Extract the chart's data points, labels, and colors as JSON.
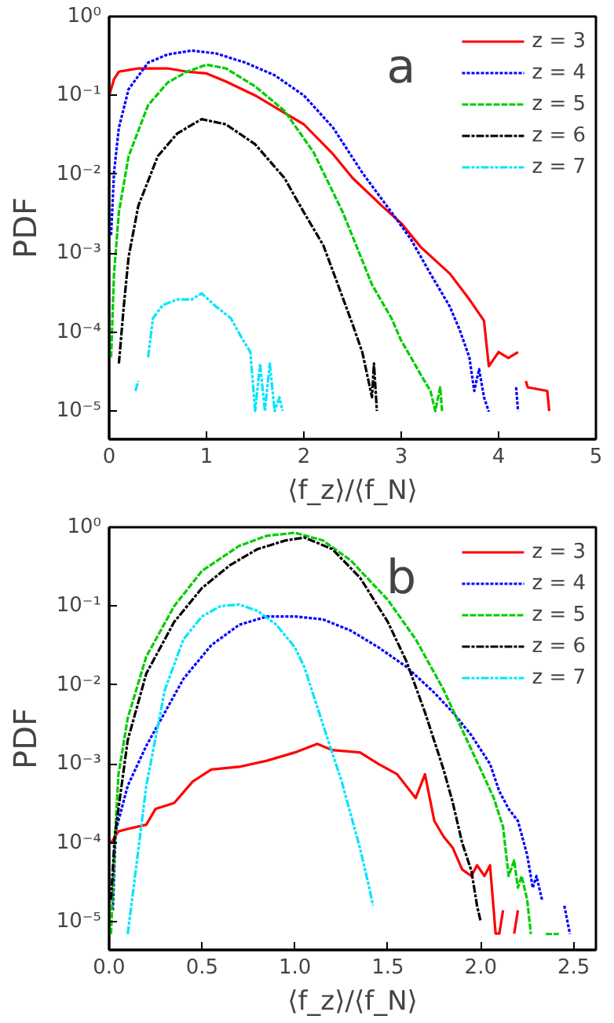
{
  "chart_data": [
    {
      "type": "line",
      "xlabel": "⟨f_z⟩/⟨f_N⟩",
      "ylabel": "PDF",
      "annotations": [
        "a"
      ],
      "log": "y",
      "legend": "top right",
      "grid": false,
      "xlim": [
        0,
        5
      ],
      "xticks": [
        0,
        1,
        2,
        3,
        4,
        5
      ],
      "ylim": [
        4.4e-06,
        1
      ],
      "yticks": [
        {
          "value": 1,
          "label": "10⁰"
        },
        {
          "value": 0.1,
          "label": "10⁻¹"
        },
        {
          "value": 0.01,
          "label": "10⁻²"
        },
        {
          "value": 0.001,
          "label": "10⁻³"
        },
        {
          "value": 0.0001,
          "label": "10⁻⁴"
        },
        {
          "value": 1e-05,
          "label": "10⁻⁵"
        }
      ],
      "series": [
        {
          "name": "z = 3",
          "color": "#ff0000",
          "line_style": "solid",
          "x": [
            0,
            0.05,
            0.1,
            0.2,
            0.3,
            0.6,
            0.8,
            1,
            1.2,
            1.5,
            1.8,
            2,
            2.3,
            2.5,
            2.8,
            3,
            3.2,
            3.5,
            3.7,
            3.85,
            3.9,
            4.0,
            4.1,
            4.2,
            4.25,
            4.28,
            4.3,
            4.5,
            4.52
          ],
          "values": [
            0.1,
            0.16,
            0.2,
            0.21,
            0.22,
            0.22,
            0.2,
            0.19,
            0.15,
            0.1,
            0.06,
            0.043,
            0.018,
            0.009,
            0.004,
            0.0024,
            0.0012,
            0.00055,
            0.00026,
            0.00014,
            3.7e-05,
            5.6e-05,
            4.7e-05,
            5.6e-05,
            null,
            2.4e-05,
            2e-05,
            1.8e-05,
            1e-05
          ]
        },
        {
          "name": "z = 4",
          "color": "#0000ff",
          "line_style": "dotted",
          "x": [
            0.02,
            0.05,
            0.1,
            0.2,
            0.4,
            0.6,
            0.85,
            1.1,
            1.4,
            1.7,
            2,
            2.3,
            2.6,
            2.9,
            3.1,
            3.3,
            3.5,
            3.6,
            3.7,
            3.75,
            3.8,
            3.85,
            3.9,
            4.0,
            4.18,
            4.2
          ],
          "values": [
            0.0017,
            0.0105,
            0.039,
            0.12,
            0.26,
            0.33,
            0.37,
            0.34,
            0.26,
            0.18,
            0.1,
            0.039,
            0.0105,
            0.0033,
            0.0015,
            0.00055,
            0.00021,
            0.000107,
            4.8e-05,
            1.8e-05,
            3.4e-05,
            1.5e-05,
            9.8e-06,
            null,
            2e-05,
            1e-05
          ]
        },
        {
          "name": "z = 5",
          "color": "#00cc00",
          "line_style": "dashed",
          "x": [
            0.02,
            0.05,
            0.1,
            0.2,
            0.4,
            0.6,
            0.8,
            1,
            1.2,
            1.5,
            1.8,
            2.1,
            2.4,
            2.7,
            2.9,
            3,
            3.1,
            3.2,
            3.3,
            3.35,
            3.4,
            3.42
          ],
          "values": [
            4.8e-05,
            0.00055,
            0.0033,
            0.017,
            0.075,
            0.145,
            0.2,
            0.245,
            0.22,
            0.13,
            0.064,
            0.019,
            0.0033,
            0.0004,
            0.00015,
            7.8e-05,
            4.8e-05,
            2.9e-05,
            1.8e-05,
            1e-05,
            2e-05,
            1e-05
          ]
        },
        {
          "name": "z = 6",
          "color": "#000000",
          "line_style": "dashdot",
          "x": [
            0.1,
            0.15,
            0.2,
            0.3,
            0.5,
            0.7,
            0.95,
            1.2,
            1.5,
            1.8,
            2,
            2.2,
            2.35,
            2.5,
            2.6,
            2.65,
            2.7,
            2.72,
            2.75
          ],
          "values": [
            4e-05,
            0.00021,
            0.0009,
            0.004,
            0.017,
            0.033,
            0.05,
            0.043,
            0.024,
            0.009,
            0.0033,
            0.00126,
            0.0004,
            0.000126,
            5.6e-05,
            2.9e-05,
            1.5e-05,
            4e-05,
            1e-05
          ]
        },
        {
          "name": "z = 7",
          "color": "#00e5ff",
          "line_style": "dashdotdot",
          "x": [
            0.27,
            0.3,
            0.35,
            0.4,
            0.45,
            0.55,
            0.7,
            0.85,
            0.95,
            1.1,
            1.25,
            1.35,
            1.45,
            1.5,
            1.55,
            1.6,
            1.65,
            1.7,
            1.75,
            1.78
          ],
          "values": [
            1.8e-05,
            2.4e-05,
            null,
            4.8e-05,
            0.00015,
            0.00022,
            0.00026,
            0.00026,
            0.00031,
            0.00021,
            0.00015,
            9e-05,
            5.6e-05,
            1e-05,
            4e-05,
            1e-05,
            4e-05,
            1e-05,
            1.5e-05,
            1e-05
          ]
        }
      ]
    },
    {
      "type": "line",
      "xlabel": "⟨f_z⟩/⟨f_N⟩",
      "ylabel": "PDF",
      "annotations": [
        "b"
      ],
      "log": "y",
      "legend": "top right",
      "grid": false,
      "xlim": [
        0,
        2.62
      ],
      "xticks": [
        {
          "value": 0,
          "label": "0.0"
        },
        0.5,
        {
          "value": 1,
          "label": "1.0"
        },
        1.5,
        {
          "value": 2,
          "label": "2.0"
        },
        2.5
      ],
      "ylim": [
        4.4e-06,
        1
      ],
      "yticks": [
        {
          "value": 1,
          "label": "10⁰"
        },
        {
          "value": 0.1,
          "label": "10⁻¹"
        },
        {
          "value": 0.01,
          "label": "10⁻²"
        },
        {
          "value": 0.001,
          "label": "10⁻³"
        },
        {
          "value": 0.0001,
          "label": "10⁻⁴"
        },
        {
          "value": 1e-05,
          "label": "10⁻⁵"
        }
      ],
      "series": [
        {
          "name": "z = 3",
          "color": "#ff0000",
          "line_style": "solid",
          "x": [
            0.01,
            0.05,
            0.1,
            0.2,
            0.25,
            0.35,
            0.45,
            0.55,
            0.7,
            0.85,
            1,
            1.12,
            1.2,
            1.35,
            1.45,
            1.55,
            1.65,
            1.7,
            1.75,
            1.8,
            1.85,
            1.9,
            1.95,
            1.98,
            2.02,
            2.05,
            2.08,
            2.1,
            2.12,
            2.15,
            2.18,
            2.2
          ],
          "values": [
            0.0001,
            0.00014,
            0.00015,
            0.00017,
            0.00027,
            0.00032,
            0.0006,
            0.00085,
            0.00092,
            0.0011,
            0.0014,
            0.0018,
            0.0015,
            0.0014,
            0.001,
            0.00074,
            0.00037,
            0.00074,
            0.00019,
            0.00012,
            8.6e-05,
            4.6e-05,
            3.8e-05,
            5.2e-05,
            3.8e-05,
            5.2e-05,
            7.1e-06,
            7.1e-06,
            1.4e-05,
            null,
            7.1e-06,
            1.4e-05
          ]
        },
        {
          "name": "z = 4",
          "color": "#0000ff",
          "line_style": "dotted",
          "x": [
            0.02,
            0.035,
            0.1,
            0.2,
            0.3,
            0.4,
            0.55,
            0.7,
            0.85,
            1,
            1.15,
            1.3,
            1.45,
            1.6,
            1.75,
            1.85,
            1.95,
            2.05,
            2.1,
            2.15,
            2.2,
            2.25,
            2.28,
            2.3,
            2.33,
            2.4,
            2.45,
            2.48
          ],
          "values": [
            1.4e-05,
            0.00014,
            0.00053,
            0.0017,
            0.0045,
            0.012,
            0.032,
            0.058,
            0.074,
            0.074,
            0.068,
            0.049,
            0.03,
            0.017,
            0.008,
            0.0045,
            0.0023,
            0.001,
            0.00045,
            0.00027,
            0.00019,
            7e-05,
            2.7e-05,
            3.8e-05,
            1.9e-05,
            null,
            1.6e-05,
            7e-06
          ]
        },
        {
          "name": "z = 5",
          "color": "#00cc00",
          "line_style": "dashed",
          "x": [
            0.01,
            0.03,
            0.05,
            0.1,
            0.2,
            0.35,
            0.5,
            0.7,
            0.85,
            1,
            1.15,
            1.3,
            1.5,
            1.65,
            1.8,
            1.9,
            2,
            2.07,
            2.12,
            2.15,
            2.18,
            2.2,
            2.22,
            2.25,
            2.27,
            2.3,
            2.35,
            2.42
          ],
          "values": [
            7e-06,
            0.0001,
            0.00073,
            0.0038,
            0.023,
            0.1,
            0.28,
            0.58,
            0.78,
            0.85,
            0.68,
            0.38,
            0.12,
            0.038,
            0.0087,
            0.0027,
            0.00085,
            0.00037,
            0.00016,
            3.8e-05,
            6e-05,
            2.7e-05,
            3.8e-05,
            1.9e-05,
            7e-06,
            null,
            7e-06,
            7e-06
          ]
        },
        {
          "name": "z = 6",
          "color": "#000000",
          "line_style": "dashdot",
          "x": [
            0.01,
            0.03,
            0.1,
            0.2,
            0.35,
            0.5,
            0.65,
            0.8,
            0.95,
            1.05,
            1.2,
            1.35,
            1.5,
            1.6,
            1.7,
            1.8,
            1.85,
            1.9,
            1.95,
            1.98,
            2
          ],
          "values": [
            1.9e-05,
            0.00012,
            0.002,
            0.014,
            0.063,
            0.17,
            0.33,
            0.53,
            0.68,
            0.74,
            0.53,
            0.23,
            0.063,
            0.02,
            0.0045,
            0.00085,
            0.00032,
            0.0001,
            4.4e-05,
            1.6e-05,
            1e-05
          ]
        },
        {
          "name": "z = 7",
          "color": "#00e5ff",
          "line_style": "dashdotdot",
          "x": [
            0.1,
            0.15,
            0.2,
            0.3,
            0.4,
            0.5,
            0.6,
            0.7,
            0.8,
            0.9,
            1,
            1.05,
            1.1,
            1.15,
            1.2,
            1.25,
            1.3,
            1.35,
            1.4,
            1.42
          ],
          "values": [
            7e-06,
            6e-05,
            0.00053,
            0.0087,
            0.038,
            0.074,
            0.1,
            0.105,
            0.087,
            0.058,
            0.03,
            0.017,
            0.0074,
            0.0032,
            0.0014,
            0.00062,
            0.00023,
            8.6e-05,
            2.7e-05,
            1.6e-05
          ]
        }
      ]
    }
  ]
}
